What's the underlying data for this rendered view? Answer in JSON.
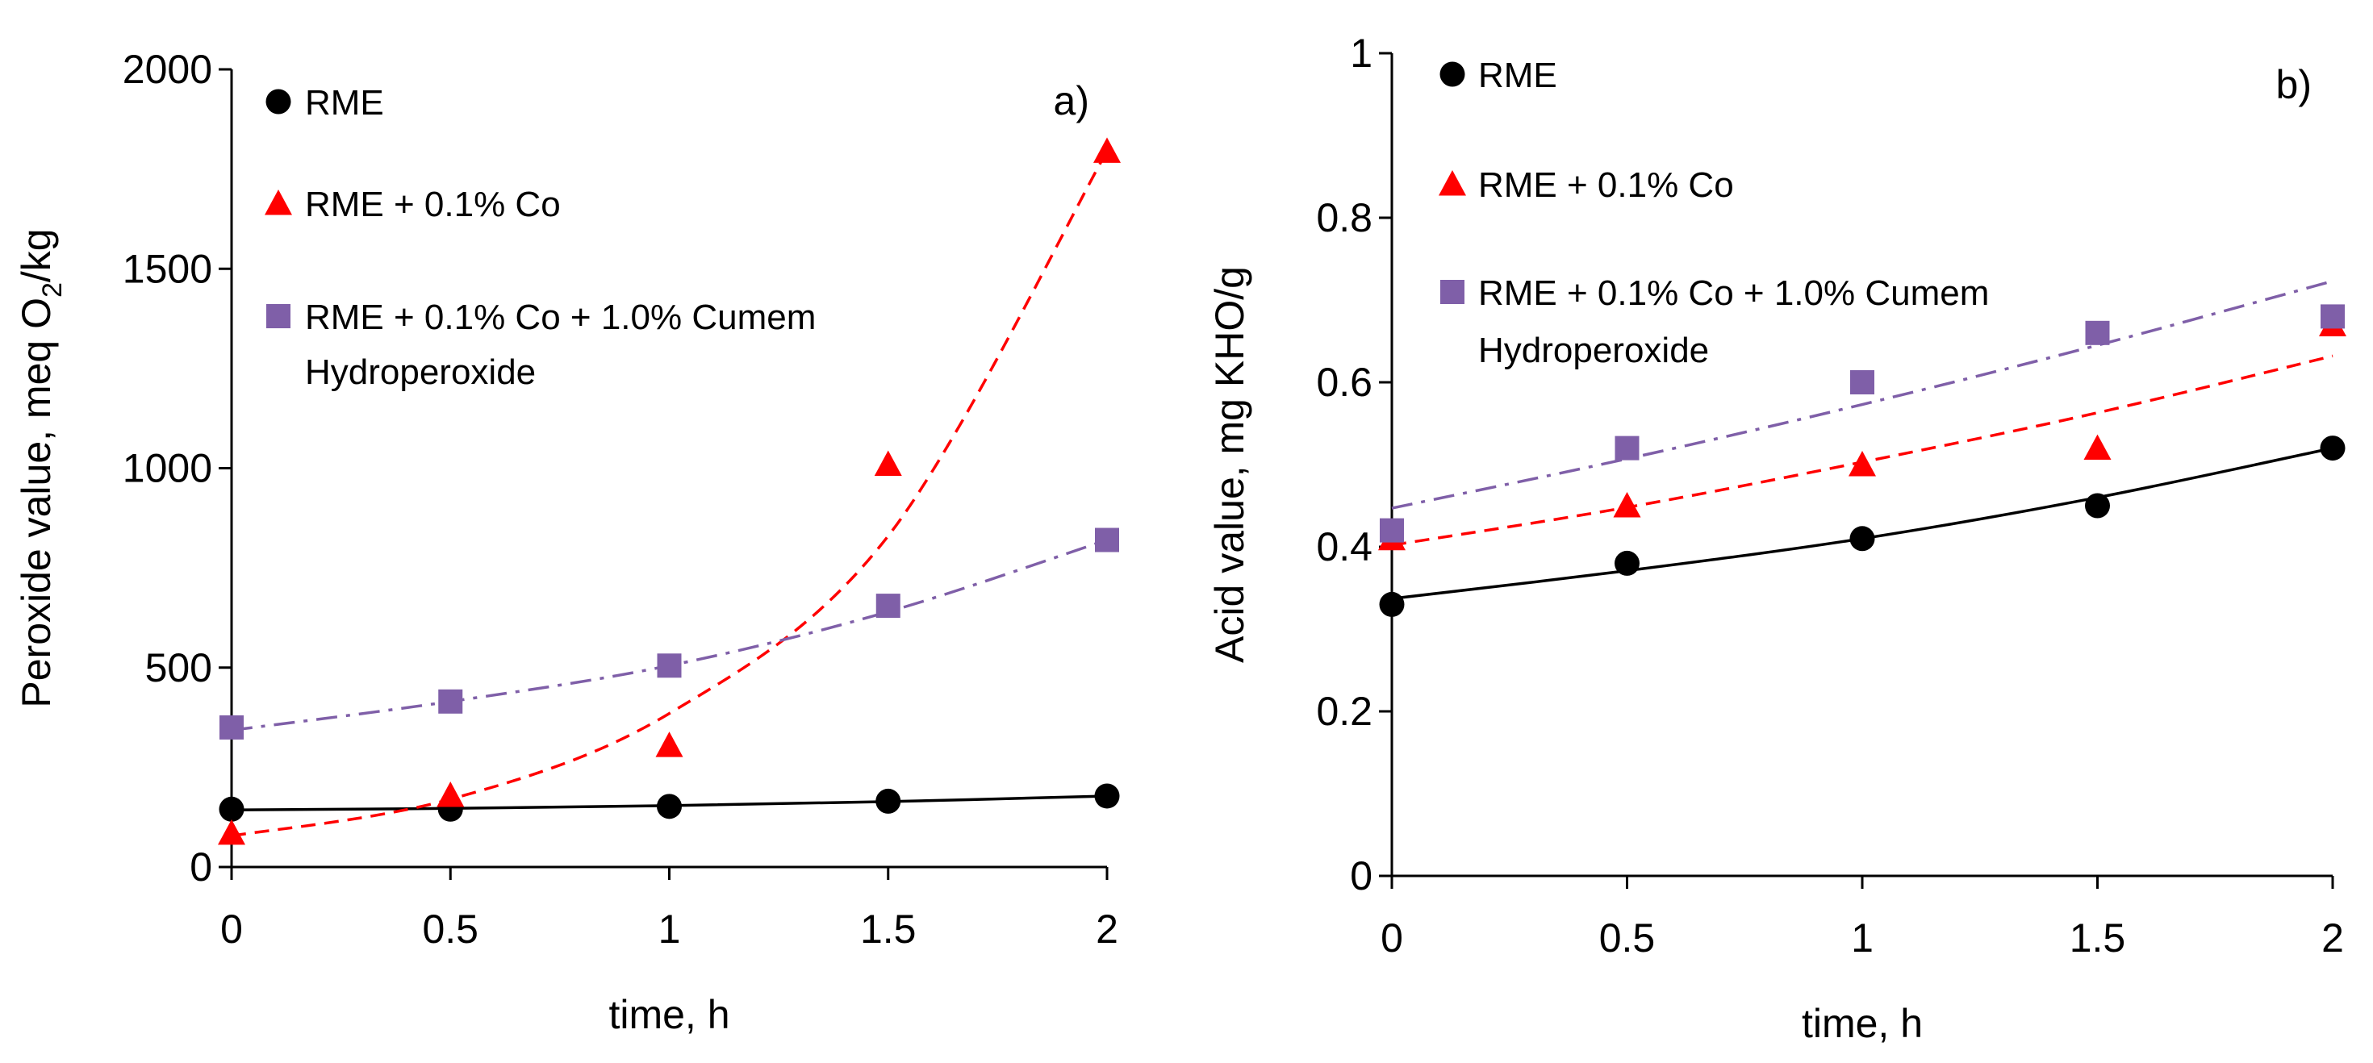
{
  "chart_data": [
    {
      "type": "scatter",
      "panel_label": "a)",
      "xlabel": "time, h",
      "ylabel": "Peroxide value, meq O",
      "ylabel_sub": "2",
      "ylabel_tail": "/kg",
      "xlim": [
        0,
        2
      ],
      "ylim": [
        0,
        2000
      ],
      "xticks": [
        "0",
        "0.5",
        "1",
        "1.5",
        "2"
      ],
      "xtick_values": [
        0,
        0.5,
        1,
        1.5,
        2
      ],
      "yticks": [
        "0",
        "500",
        "1000",
        "1500",
        "2000"
      ],
      "ytick_values": [
        0,
        500,
        1000,
        1500,
        2000
      ],
      "x": [
        0,
        0.5,
        1,
        1.5,
        2
      ],
      "series": [
        {
          "name": "RME",
          "legend_lines": [
            "RME"
          ],
          "marker": "circle",
          "color": "#000000",
          "trend": "solid",
          "values": [
            145,
            145,
            152,
            165,
            178
          ],
          "trendline": [
            143,
            147,
            154,
            164,
            178
          ]
        },
        {
          "name": "RME + 0.1% Co",
          "legend_lines": [
            "RME + 0.1% Co"
          ],
          "marker": "triangle",
          "color": "#ff0000",
          "trend": "dashed",
          "values": [
            85,
            180,
            305,
            1010,
            1795
          ],
          "trendline": [
            78,
            170,
            385,
            830,
            1795
          ]
        },
        {
          "name": "RME + 0.1% Co + 1.0% Cumem Hydroperoxide",
          "legend_lines": [
            "RME + 0.1% Co + 1.0% Cumem",
            "Hydroperoxide"
          ],
          "marker": "square",
          "color": "#7f5fa8",
          "trend": "dashdot",
          "values": [
            350,
            415,
            505,
            655,
            820
          ],
          "trendline": [
            343,
            415,
            505,
            640,
            820
          ]
        }
      ]
    },
    {
      "type": "scatter",
      "panel_label": "b)",
      "xlabel": "time, h",
      "ylabel": "Acid value, mg KHO/g",
      "xlim": [
        0,
        2
      ],
      "ylim": [
        0,
        1
      ],
      "xticks": [
        "0",
        "0.5",
        "1",
        "1.5",
        "2"
      ],
      "xtick_values": [
        0,
        0.5,
        1,
        1.5,
        2
      ],
      "yticks": [
        "0",
        "0.2",
        "0.4",
        "0.6",
        "0.8",
        "1"
      ],
      "ytick_values": [
        0,
        0.2,
        0.4,
        0.6,
        0.8,
        1
      ],
      "x": [
        0,
        0.5,
        1,
        1.5,
        2
      ],
      "series": [
        {
          "name": "RME",
          "legend_lines": [
            "RME"
          ],
          "marker": "circle",
          "color": "#000000",
          "trend": "solid",
          "values": [
            0.33,
            0.38,
            0.41,
            0.45,
            0.52
          ],
          "trendline": [
            0.337,
            0.371,
            0.41,
            0.46,
            0.52
          ]
        },
        {
          "name": "RME + 0.1% Co",
          "legend_lines": [
            "RME + 0.1% Co"
          ],
          "marker": "triangle",
          "color": "#ff0000",
          "trend": "dashed",
          "values": [
            0.41,
            0.45,
            0.5,
            0.52,
            0.67
          ],
          "trendline": [
            0.402,
            0.448,
            0.503,
            0.563,
            0.632
          ]
        },
        {
          "name": "RME + 0.1% Co + 1.0% Cumem Hydroperoxide",
          "legend_lines": [
            "RME + 0.1% Co + 1.0% Cumem",
            "Hydroperoxide"
          ],
          "marker": "square",
          "color": "#7f5fa8",
          "trend": "dashdot",
          "values": [
            0.42,
            0.52,
            0.6,
            0.66,
            0.68
          ],
          "trendline": [
            0.447,
            0.507,
            0.573,
            0.645,
            0.723
          ]
        }
      ]
    }
  ]
}
